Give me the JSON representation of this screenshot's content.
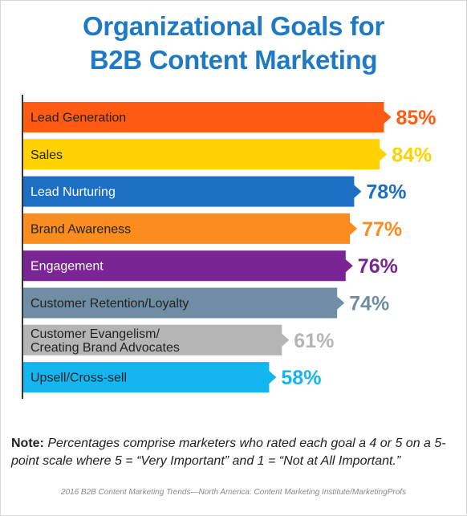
{
  "title": {
    "line1": "Organizational Goals for",
    "line2": "B2B Content Marketing"
  },
  "chart_data": {
    "type": "bar",
    "orientation": "horizontal",
    "categories": [
      "Lead Generation",
      "Sales",
      "Lead Nurturing",
      "Brand Awareness",
      "Engagement",
      "Customer Retention/Loyalty",
      "Customer Evangelism/\nCreating Brand Advocates",
      "Upsell/Cross-sell"
    ],
    "values": [
      85,
      84,
      78,
      77,
      76,
      74,
      61,
      58
    ],
    "value_labels": [
      "85%",
      "84%",
      "78%",
      "77%",
      "76%",
      "74%",
      "61%",
      "58%"
    ],
    "colors": [
      "#ff5b12",
      "#ffd200",
      "#1d6fc4",
      "#fb8c1e",
      "#7a2594",
      "#708ea3",
      "#b5b5b5",
      "#13b6f0"
    ],
    "label_colors": [
      "#222222",
      "#222222",
      "#ffffff",
      "#222222",
      "#ffffff",
      "#222222",
      "#222222",
      "#222222"
    ],
    "xlim": [
      0,
      100
    ],
    "grid": false,
    "legend": "none"
  },
  "note": {
    "label": "Note:",
    "text": " Percentages comprise marketers who rated each goal a 4 or 5 on a 5-point scale where 5 = “Very Important” and 1 = “Not at All Important.”"
  },
  "source": "2016 B2B Content Marketing Trends—North America: Content Marketing Institute/MarketingProfs"
}
